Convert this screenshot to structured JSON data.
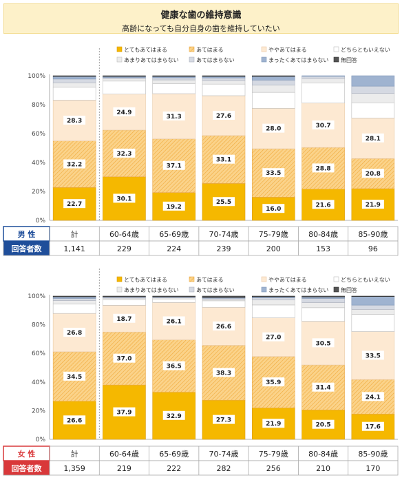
{
  "header": {
    "title": "健康な歯の維持意識",
    "subtitle": "高齢になっても自分自身の歯を維持していたい"
  },
  "legend": [
    "とてもあてはまる",
    "あてはまる",
    "ややあてはまる",
    "どちらともいえない",
    "あまりあてはまらない",
    "あてはまらない",
    "まったくあてはまらない",
    "無回答"
  ],
  "colors": {
    "c0": "#f5b800",
    "c1": "#f7c873",
    "c2": "#fde9d2",
    "c3": "#ffffff",
    "c4": "#ececec",
    "c5": "#d5d9e2",
    "c6": "#9fb3d0",
    "c7": "#555555",
    "male": "#1f4e9a",
    "female": "#d9383a"
  },
  "yticks": [
    "0%",
    "20%",
    "40%",
    "60%",
    "80%",
    "100%"
  ],
  "chart_data": [
    {
      "type": "bar",
      "stacked": true,
      "group_label": "男 性",
      "count_label": "回答者数",
      "categories": [
        "計",
        "60-64歳",
        "65-69歳",
        "70-74歳",
        "75-79歳",
        "80-84歳",
        "85-90歳"
      ],
      "counts": [
        "1,141",
        "229",
        "224",
        "239",
        "200",
        "153",
        "96"
      ],
      "series": [
        {
          "name": "とてもあてはまる",
          "values": [
            22.7,
            30.1,
            19.2,
            25.5,
            16.0,
            21.6,
            21.9
          ]
        },
        {
          "name": "あてはまる",
          "values": [
            32.2,
            32.3,
            37.1,
            33.1,
            33.5,
            28.8,
            20.8
          ]
        },
        {
          "name": "ややあてはまる",
          "values": [
            28.3,
            24.9,
            31.3,
            27.6,
            28.0,
            30.7,
            28.1
          ]
        },
        {
          "name": "どちらともいえない",
          "values": [
            9.0,
            9.0,
            7.0,
            8.0,
            11.0,
            14.0,
            10.5
          ]
        },
        {
          "name": "あまりあてはまらない",
          "values": [
            3.0,
            1.5,
            2.5,
            2.5,
            5.0,
            3.0,
            6.5
          ]
        },
        {
          "name": "あてはまらない",
          "values": [
            2.5,
            1.0,
            1.5,
            1.8,
            3.5,
            1.5,
            5.0
          ]
        },
        {
          "name": "まったくあてはまらない",
          "values": [
            1.8,
            0.7,
            0.9,
            1.0,
            2.5,
            0.4,
            7.2
          ]
        },
        {
          "name": "無回答",
          "values": [
            0.5,
            0.5,
            0.5,
            0.5,
            0.5,
            0.0,
            0.0
          ]
        }
      ],
      "ylim": [
        0,
        100
      ]
    },
    {
      "type": "bar",
      "stacked": true,
      "group_label": "女 性",
      "count_label": "回答者数",
      "categories": [
        "計",
        "60-64歳",
        "65-69歳",
        "70-74歳",
        "75-79歳",
        "80-84歳",
        "85-90歳"
      ],
      "counts": [
        "1,359",
        "219",
        "222",
        "282",
        "256",
        "210",
        "170"
      ],
      "series": [
        {
          "name": "とてもあてはまる",
          "values": [
            26.6,
            37.9,
            32.9,
            27.3,
            21.9,
            20.5,
            17.6
          ]
        },
        {
          "name": "あてはまる",
          "values": [
            34.5,
            37.0,
            36.5,
            38.3,
            35.9,
            31.4,
            24.1
          ]
        },
        {
          "name": "ややあてはまる",
          "values": [
            26.8,
            18.7,
            26.1,
            26.6,
            27.0,
            30.5,
            33.5
          ]
        },
        {
          "name": "どちらともいえない",
          "values": [
            6.5,
            4.0,
            2.5,
            4.5,
            9.0,
            9.5,
            12.0
          ]
        },
        {
          "name": "あまりあてはまらない",
          "values": [
            2.5,
            1.0,
            0.8,
            1.2,
            3.5,
            3.5,
            3.5
          ]
        },
        {
          "name": "あてはまらない",
          "values": [
            1.5,
            0.6,
            0.4,
            0.6,
            1.5,
            3.0,
            3.0
          ]
        },
        {
          "name": "まったくあてはまらない",
          "values": [
            1.1,
            0.3,
            0.3,
            0.5,
            0.7,
            1.0,
            6.0
          ]
        },
        {
          "name": "無回答",
          "values": [
            0.5,
            0.5,
            0.5,
            1.0,
            0.5,
            0.6,
            0.3
          ]
        }
      ],
      "ylim": [
        0,
        100
      ]
    }
  ]
}
